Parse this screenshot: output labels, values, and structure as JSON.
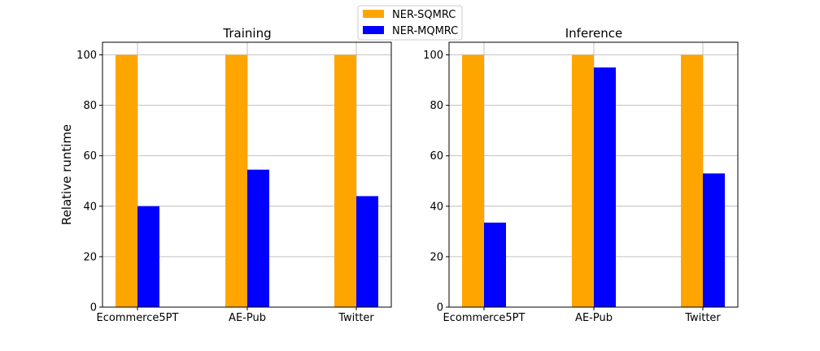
{
  "chart_data": [
    {
      "type": "bar",
      "title": "Training",
      "xlabel": "",
      "ylabel": "Relative runtime",
      "categories": [
        "Ecommerce5PT",
        "AE-Pub",
        "Twitter"
      ],
      "series": [
        {
          "name": "NER-SQMRC",
          "color": "#ffa500",
          "values": [
            100,
            100,
            100
          ]
        },
        {
          "name": "NER-MQMRC",
          "color": "#0000ff",
          "values": [
            40,
            54.5,
            44
          ]
        }
      ],
      "ylim": [
        0,
        105
      ],
      "yticks": [
        "0",
        "20",
        "40",
        "60",
        "80",
        "100"
      ],
      "grid": true
    },
    {
      "type": "bar",
      "title": "Inference",
      "xlabel": "",
      "ylabel": "",
      "categories": [
        "Ecommerce5PT",
        "AE-Pub",
        "Twitter"
      ],
      "series": [
        {
          "name": "NER-SQMRC",
          "color": "#ffa500",
          "values": [
            100,
            100,
            100
          ]
        },
        {
          "name": "NER-MQMRC",
          "color": "#0000ff",
          "values": [
            33.5,
            95,
            53
          ]
        }
      ],
      "ylim": [
        0,
        105
      ],
      "yticks": [
        "0",
        "20",
        "40",
        "60",
        "80",
        "100"
      ],
      "grid": true
    }
  ],
  "legend": {
    "placement": "top-center",
    "entries": [
      {
        "label": "NER-SQMRC",
        "color": "#ffa500"
      },
      {
        "label": "NER-MQMRC",
        "color": "#0000ff"
      }
    ]
  }
}
